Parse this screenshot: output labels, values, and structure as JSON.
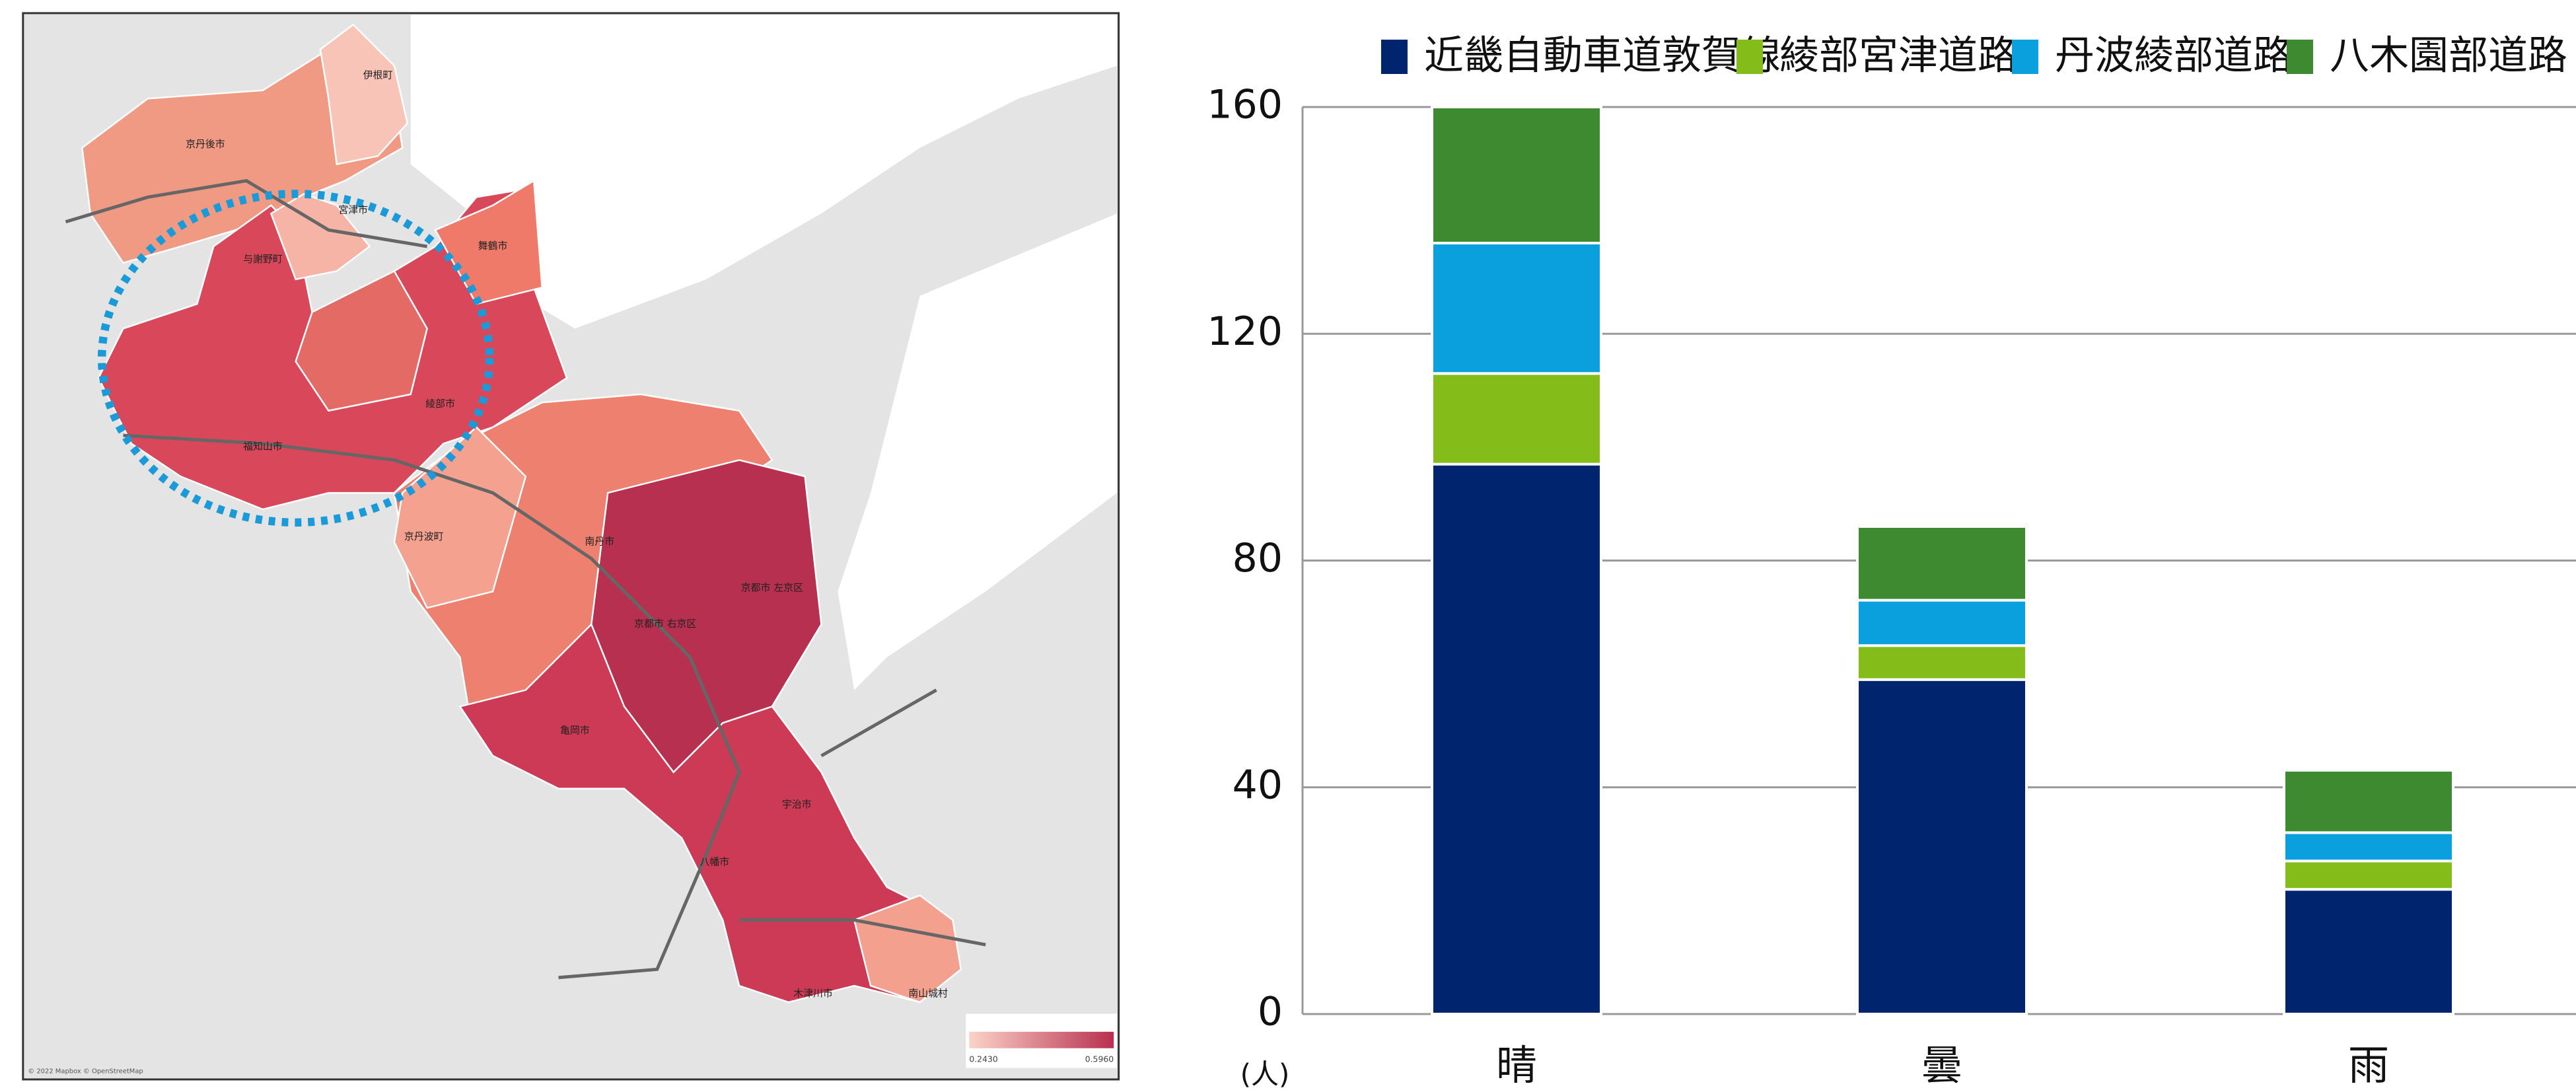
{
  "map": {
    "labels": [
      "京丹後市",
      "伊根町",
      "宮津市",
      "与謝野町",
      "舞鶴市",
      "綾部市",
      "福知山市",
      "京丹波町",
      "南丹市",
      "亀岡市",
      "京都市 左京区",
      "京都市 右京区",
      "宇治市",
      "八幡市",
      "木津川市",
      "南山城村"
    ],
    "legend_min": "0.2430",
    "legend_max": "0.5960",
    "attribution": "© 2022 Mapbox © OpenStreetMap"
  },
  "chart_data": {
    "type": "stacked_bar",
    "y_unit": "(人)",
    "categories": [
      "晴",
      "曇",
      "雨"
    ],
    "series": [
      {
        "name": "近畿自動車道敦賀線",
        "color": "#00246e",
        "values": [
          97,
          59,
          22
        ]
      },
      {
        "name": "綾部宮津道路",
        "color": "#84bd1a",
        "values": [
          16,
          6,
          5
        ]
      },
      {
        "name": "丹波綾部道路",
        "color": "#0aa0dd",
        "values": [
          23,
          8,
          5
        ]
      },
      {
        "name": "八木園部道路",
        "color": "#3d8a30",
        "values": [
          24,
          13,
          11
        ]
      }
    ],
    "ylim": [
      0,
      160
    ],
    "yticks": [
      0,
      40,
      80,
      120,
      160
    ],
    "grid": true,
    "legend": "top"
  }
}
